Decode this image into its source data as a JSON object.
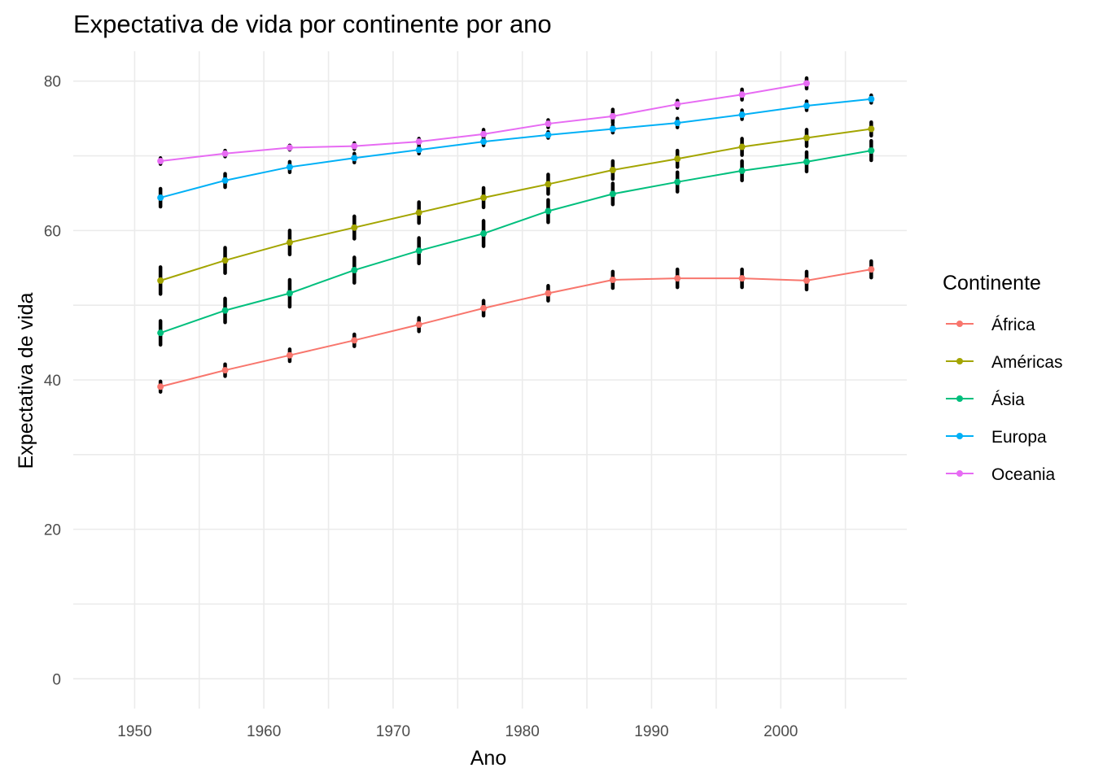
{
  "chart_data": {
    "type": "line",
    "title": "Expectativa de vida por continente por ano",
    "xlabel": "Ano",
    "ylabel": "Expectativa de vida",
    "xlim": [
      1945.25,
      2009.75
    ],
    "ylim": [
      -4,
      84
    ],
    "x_ticks": [
      1950,
      1960,
      1970,
      1980,
      1990,
      2000
    ],
    "y_ticks": [
      0,
      20,
      40,
      60,
      80
    ],
    "grid": true,
    "legend_title": "Continente",
    "legend_position": "right",
    "series": [
      {
        "name": "África",
        "color": "#F8766D",
        "x": [
          1952,
          1957,
          1962,
          1967,
          1972,
          1977,
          1982,
          1987,
          1992,
          1997,
          2002,
          2007
        ],
        "y": [
          39.1,
          41.3,
          43.3,
          45.3,
          47.4,
          49.6,
          51.6,
          53.4,
          53.6,
          53.6,
          53.3,
          54.8
        ],
        "error": [
          0.7,
          0.8,
          0.8,
          0.8,
          0.9,
          1.0,
          1.0,
          1.1,
          1.2,
          1.2,
          1.2,
          1.1
        ]
      },
      {
        "name": "Américas",
        "color": "#A3A500",
        "x": [
          1952,
          1957,
          1962,
          1967,
          1972,
          1977,
          1982,
          1987,
          1992,
          1997,
          2002,
          2007
        ],
        "y": [
          53.3,
          56.0,
          58.4,
          60.4,
          62.4,
          64.4,
          66.2,
          68.1,
          69.6,
          71.2,
          72.4,
          73.6
        ],
        "error": [
          1.8,
          1.7,
          1.6,
          1.5,
          1.4,
          1.3,
          1.3,
          1.2,
          1.1,
          1.1,
          1.1,
          0.9
        ]
      },
      {
        "name": "Ásia",
        "color": "#00BF7D",
        "x": [
          1952,
          1957,
          1962,
          1967,
          1972,
          1977,
          1982,
          1987,
          1992,
          1997,
          2002,
          2007
        ],
        "y": [
          46.3,
          49.3,
          51.6,
          54.7,
          57.3,
          59.6,
          62.6,
          64.9,
          66.5,
          68.0,
          69.2,
          70.7
        ],
        "error": [
          1.6,
          1.6,
          1.8,
          1.7,
          1.7,
          1.7,
          1.5,
          1.4,
          1.3,
          1.3,
          1.3,
          1.3
        ]
      },
      {
        "name": "Europa",
        "color": "#00B0F6",
        "x": [
          1952,
          1957,
          1962,
          1967,
          1972,
          1977,
          1982,
          1987,
          1992,
          1997,
          2002,
          2007
        ],
        "y": [
          64.4,
          66.7,
          68.5,
          69.7,
          70.8,
          71.9,
          72.8,
          73.6,
          74.4,
          75.5,
          76.7,
          77.6
        ],
        "error": [
          1.2,
          0.9,
          0.7,
          0.6,
          0.5,
          0.5,
          0.4,
          0.5,
          0.6,
          0.6,
          0.6,
          0.5
        ]
      },
      {
        "name": "Oceania",
        "color": "#E76BF3",
        "x": [
          1952,
          1957,
          1962,
          1967,
          1972,
          1977,
          1982,
          1987,
          1992,
          1997,
          2002
        ],
        "y": [
          69.3,
          70.3,
          71.1,
          71.3,
          71.9,
          72.9,
          74.3,
          75.3,
          76.9,
          78.2,
          79.7
        ],
        "error": [
          0.4,
          0.4,
          0.3,
          0.4,
          0.4,
          0.6,
          0.5,
          0.9,
          0.5,
          0.7,
          0.7
        ]
      }
    ]
  }
}
